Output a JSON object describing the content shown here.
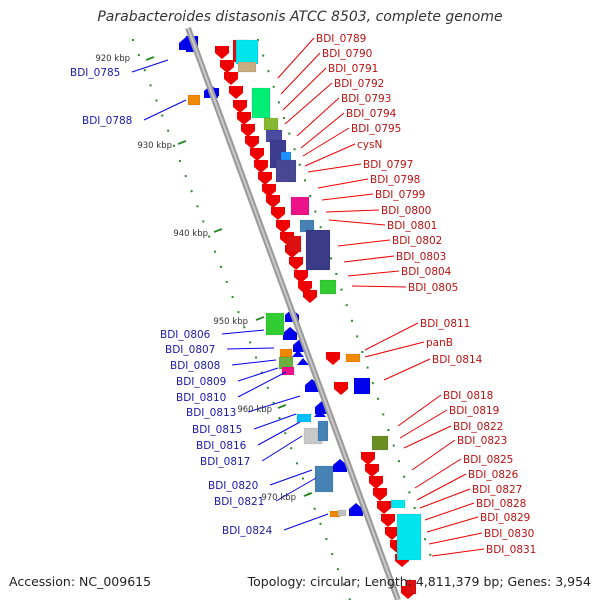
{
  "title": "Parabacteroides distasonis ATCC 8503, complete genome",
  "accession": "Accession: NC_009615",
  "summary": "Topology: circular; Length: 4,811,379 bp; Genes: 3,954",
  "scale_marks": [
    "920 kbp",
    "930 kbp",
    "940 kbp",
    "950 kbp",
    "960 kbp",
    "970 kbp"
  ],
  "left_labels": [
    "BDI_0785",
    "BDI_0788",
    "BDI_0806",
    "BDI_0807",
    "BDI_0808",
    "BDI_0809",
    "BDI_0810",
    "BDI_0813",
    "BDI_0815",
    "BDI_0816",
    "BDI_0817",
    "BDI_0820",
    "BDI_0821",
    "BDI_0824"
  ],
  "right_labels": [
    "BDI_0789",
    "BDI_0790",
    "BDI_0791",
    "BDI_0792",
    "BDI_0793",
    "BDI_0794",
    "BDI_0795",
    "cysN",
    "BDI_0797",
    "BDI_0798",
    "BDI_0799",
    "BDI_0800",
    "BDI_0801",
    "BDI_0802",
    "BDI_0803",
    "BDI_0804",
    "BDI_0805",
    "BDI_0811",
    "panB",
    "BDI_0814",
    "BDI_0818",
    "BDI_0819",
    "BDI_0822",
    "BDI_0823",
    "BDI_0825",
    "BDI_0826",
    "BDI_0827",
    "BDI_0828",
    "BDI_0829",
    "BDI_0830",
    "BDI_0831"
  ],
  "colors": {
    "forward_strand": "#ee0000",
    "reverse_strand": "#0000ee",
    "backbone": "#9a9a9a",
    "scale_dots": "#2a8a2a"
  }
}
